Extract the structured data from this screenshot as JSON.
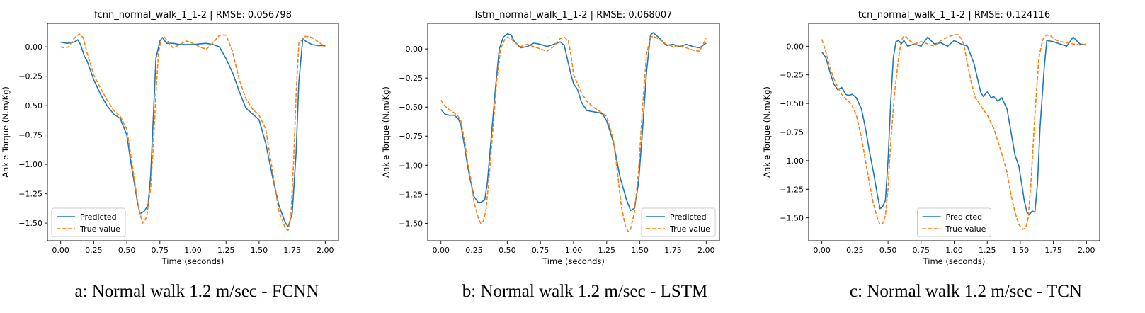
{
  "chart_data": [
    {
      "type": "line",
      "title": "fcnn_normal_walk_1_1-2 | RMSE: 0.056798",
      "xlabel": "Time (seconds)",
      "ylabel": "Ankle Torque (N.m/Kg)",
      "xlim": [
        -0.1,
        2.1
      ],
      "ylim": [
        -1.65,
        0.2
      ],
      "xticks": [
        "0.00",
        "0.25",
        "0.50",
        "0.75",
        "1.00",
        "1.25",
        "1.50",
        "1.75",
        "2.00"
      ],
      "yticks": [
        "0.00",
        "−0.25",
        "−0.50",
        "−0.75",
        "−1.00",
        "−1.25",
        "−1.50"
      ],
      "legend_position": "lower-left",
      "series": [
        {
          "name": "Predicted",
          "color": "#1f77b4",
          "dash": "solid",
          "x": [
            0,
            0.05,
            0.1,
            0.13,
            0.15,
            0.18,
            0.2,
            0.25,
            0.3,
            0.35,
            0.4,
            0.45,
            0.5,
            0.53,
            0.56,
            0.58,
            0.6,
            0.63,
            0.66,
            0.68,
            0.7,
            0.72,
            0.75,
            0.77,
            0.8,
            0.85,
            0.9,
            1.0,
            1.1,
            1.15,
            1.2,
            1.25,
            1.3,
            1.35,
            1.4,
            1.45,
            1.5,
            1.55,
            1.6,
            1.65,
            1.7,
            1.72,
            1.75,
            1.78,
            1.8,
            1.83,
            1.85,
            1.9,
            1.95,
            2.0
          ],
          "y": [
            0.04,
            0.03,
            0.04,
            0.06,
            0.02,
            -0.08,
            -0.12,
            -0.28,
            -0.4,
            -0.5,
            -0.57,
            -0.61,
            -0.75,
            -0.98,
            -1.18,
            -1.32,
            -1.42,
            -1.4,
            -1.35,
            -1.1,
            -0.6,
            -0.1,
            0.05,
            0.08,
            0.03,
            0.03,
            0.02,
            0.02,
            0.03,
            0.02,
            0.0,
            -0.1,
            -0.22,
            -0.38,
            -0.52,
            -0.57,
            -0.62,
            -0.82,
            -1.1,
            -1.35,
            -1.5,
            -1.53,
            -1.42,
            -0.9,
            -0.3,
            0.07,
            0.05,
            0.02,
            0.01,
            0.01
          ]
        },
        {
          "name": "True value",
          "color": "#ff7f0e",
          "dash": "dashed",
          "x": [
            0,
            0.03,
            0.06,
            0.1,
            0.14,
            0.17,
            0.2,
            0.25,
            0.3,
            0.35,
            0.4,
            0.45,
            0.5,
            0.53,
            0.56,
            0.59,
            0.62,
            0.65,
            0.68,
            0.7,
            0.72,
            0.74,
            0.76,
            0.78,
            0.8,
            0.85,
            0.9,
            0.95,
            1.0,
            1.05,
            1.1,
            1.15,
            1.2,
            1.25,
            1.3,
            1.35,
            1.4,
            1.45,
            1.5,
            1.55,
            1.6,
            1.65,
            1.7,
            1.72,
            1.74,
            1.76,
            1.78,
            1.8,
            1.85,
            1.9,
            1.95,
            2.0
          ],
          "y": [
            0.0,
            -0.01,
            0.0,
            0.07,
            0.11,
            0.08,
            -0.05,
            -0.24,
            -0.35,
            -0.45,
            -0.54,
            -0.59,
            -0.7,
            -0.92,
            -1.15,
            -1.38,
            -1.5,
            -1.45,
            -1.2,
            -0.85,
            -0.4,
            -0.05,
            0.07,
            0.09,
            0.06,
            -0.01,
            0.02,
            0.05,
            0.03,
            0.0,
            -0.02,
            0.03,
            0.1,
            0.1,
            -0.04,
            -0.28,
            -0.44,
            -0.53,
            -0.58,
            -0.7,
            -1.05,
            -1.4,
            -1.55,
            -1.56,
            -1.45,
            -1.0,
            -0.4,
            0.03,
            0.09,
            0.08,
            0.04,
            0.0
          ]
        }
      ]
    },
    {
      "type": "line",
      "title": "lstm_normal_walk_1_1-2 | RMSE: 0.068007",
      "xlabel": "Time (seconds)",
      "ylabel": "Ankle Torque (N.m/Kg)",
      "xlim": [
        -0.1,
        2.1
      ],
      "ylim": [
        -1.65,
        0.22
      ],
      "xticks": [
        "0.00",
        "0.25",
        "0.50",
        "0.75",
        "1.00",
        "1.25",
        "1.50",
        "1.75",
        "2.00"
      ],
      "yticks": [
        "0.00",
        "−0.25",
        "−0.50",
        "−0.75",
        "−1.00",
        "−1.25",
        "−1.50"
      ],
      "legend_position": "lower-right",
      "series": [
        {
          "name": "Predicted",
          "color": "#1f77b4",
          "dash": "solid",
          "x": [
            0,
            0.03,
            0.06,
            0.1,
            0.13,
            0.15,
            0.18,
            0.2,
            0.22,
            0.25,
            0.28,
            0.3,
            0.33,
            0.35,
            0.38,
            0.41,
            0.44,
            0.47,
            0.5,
            0.53,
            0.55,
            0.6,
            0.65,
            0.7,
            0.75,
            0.8,
            0.85,
            0.9,
            0.93,
            0.96,
            0.98,
            1.0,
            1.03,
            1.06,
            1.1,
            1.15,
            1.2,
            1.22,
            1.25,
            1.3,
            1.35,
            1.4,
            1.43,
            1.46,
            1.49,
            1.52,
            1.55,
            1.58,
            1.6,
            1.65,
            1.7,
            1.75,
            1.8,
            1.85,
            1.9,
            1.95,
            2.0
          ],
          "y": [
            -0.52,
            -0.56,
            -0.57,
            -0.57,
            -0.6,
            -0.65,
            -0.85,
            -1.0,
            -1.12,
            -1.27,
            -1.32,
            -1.32,
            -1.3,
            -1.15,
            -0.75,
            -0.35,
            0.0,
            0.1,
            0.13,
            0.12,
            0.07,
            0.01,
            0.02,
            0.05,
            0.04,
            0.02,
            0.04,
            0.06,
            0.03,
            -0.12,
            -0.22,
            -0.3,
            -0.35,
            -0.46,
            -0.53,
            -0.54,
            -0.55,
            -0.56,
            -0.62,
            -0.8,
            -1.1,
            -1.3,
            -1.39,
            -1.37,
            -1.15,
            -0.7,
            -0.2,
            0.12,
            0.14,
            0.09,
            0.03,
            0.04,
            0.02,
            0.04,
            0.02,
            0.01,
            0.05
          ]
        },
        {
          "name": "True value",
          "color": "#ff7f0e",
          "dash": "dashed",
          "x": [
            0,
            0.03,
            0.06,
            0.1,
            0.13,
            0.15,
            0.18,
            0.2,
            0.23,
            0.25,
            0.28,
            0.3,
            0.32,
            0.34,
            0.36,
            0.39,
            0.42,
            0.45,
            0.48,
            0.5,
            0.53,
            0.55,
            0.6,
            0.65,
            0.7,
            0.75,
            0.8,
            0.85,
            0.9,
            0.93,
            0.96,
            0.98,
            1.0,
            1.03,
            1.06,
            1.1,
            1.15,
            1.2,
            1.25,
            1.3,
            1.33,
            1.36,
            1.39,
            1.41,
            1.43,
            1.46,
            1.49,
            1.52,
            1.55,
            1.58,
            1.6,
            1.65,
            1.7,
            1.75,
            1.8,
            1.85,
            1.9,
            1.95,
            2.0
          ],
          "y": [
            -0.44,
            -0.49,
            -0.52,
            -0.55,
            -0.58,
            -0.62,
            -0.8,
            -0.97,
            -1.15,
            -1.32,
            -1.45,
            -1.5,
            -1.48,
            -1.38,
            -1.15,
            -0.72,
            -0.28,
            0.0,
            0.08,
            0.1,
            0.09,
            0.06,
            0.02,
            0.04,
            0.02,
            0.0,
            -0.02,
            0.02,
            0.09,
            0.1,
            0.07,
            -0.05,
            -0.22,
            -0.3,
            -0.38,
            -0.45,
            -0.5,
            -0.54,
            -0.58,
            -0.78,
            -1.05,
            -1.35,
            -1.52,
            -1.57,
            -1.55,
            -1.4,
            -1.05,
            -0.5,
            -0.05,
            0.1,
            0.11,
            0.08,
            0.04,
            0.02,
            0.03,
            0.01,
            -0.01,
            -0.02,
            0.09
          ]
        }
      ]
    },
    {
      "type": "line",
      "title": "tcn_normal_walk_1_1-2 | RMSE: 0.124116",
      "xlabel": "Time (seconds)",
      "ylabel": "Ankle Torque (N.m/Kg)",
      "xlim": [
        -0.1,
        2.1
      ],
      "ylim": [
        -1.7,
        0.2
      ],
      "xticks": [
        "0.00",
        "0.25",
        "0.50",
        "0.75",
        "1.00",
        "1.25",
        "1.50",
        "1.75",
        "2.00"
      ],
      "yticks": [
        "0.00",
        "−0.25",
        "−0.50",
        "−0.75",
        "−1.00",
        "−1.25",
        "−1.50"
      ],
      "legend_position": "lower-center",
      "series": [
        {
          "name": "Predicted",
          "color": "#1f77b4",
          "dash": "solid",
          "x": [
            0,
            0.03,
            0.06,
            0.09,
            0.12,
            0.15,
            0.18,
            0.2,
            0.23,
            0.26,
            0.3,
            0.33,
            0.36,
            0.39,
            0.42,
            0.44,
            0.46,
            0.48,
            0.5,
            0.52,
            0.54,
            0.56,
            0.58,
            0.6,
            0.62,
            0.65,
            0.7,
            0.75,
            0.8,
            0.85,
            0.9,
            0.95,
            1.0,
            1.05,
            1.1,
            1.15,
            1.2,
            1.22,
            1.25,
            1.28,
            1.3,
            1.33,
            1.36,
            1.4,
            1.43,
            1.46,
            1.49,
            1.51,
            1.53,
            1.55,
            1.57,
            1.59,
            1.61,
            1.63,
            1.65,
            1.68,
            1.7,
            1.75,
            1.8,
            1.85,
            1.9,
            1.95,
            2.0
          ],
          "y": [
            -0.05,
            -0.1,
            -0.22,
            -0.33,
            -0.38,
            -0.36,
            -0.42,
            -0.43,
            -0.42,
            -0.45,
            -0.55,
            -0.72,
            -0.92,
            -1.1,
            -1.3,
            -1.42,
            -1.4,
            -1.35,
            -1.0,
            -0.5,
            -0.1,
            0.04,
            0.05,
            0.02,
            0.05,
            0.0,
            0.02,
            0.0,
            0.08,
            0.02,
            0.03,
            0.0,
            0.05,
            0.02,
            0.0,
            -0.15,
            -0.4,
            -0.44,
            -0.4,
            -0.45,
            -0.44,
            -0.48,
            -0.45,
            -0.55,
            -0.75,
            -0.95,
            -1.05,
            -1.2,
            -1.35,
            -1.45,
            -1.47,
            -1.44,
            -1.45,
            -1.2,
            -0.7,
            -0.2,
            0.05,
            0.04,
            0.02,
            0.0,
            0.08,
            0.02,
            0.01
          ]
        },
        {
          "name": "True value",
          "color": "#ff7f0e",
          "dash": "dashed",
          "x": [
            0,
            0.03,
            0.06,
            0.09,
            0.12,
            0.15,
            0.18,
            0.22,
            0.26,
            0.3,
            0.33,
            0.36,
            0.39,
            0.42,
            0.44,
            0.46,
            0.48,
            0.5,
            0.52,
            0.55,
            0.58,
            0.6,
            0.62,
            0.64,
            0.66,
            0.7,
            0.75,
            0.8,
            0.85,
            0.9,
            0.95,
            1.0,
            1.03,
            1.06,
            1.08,
            1.1,
            1.13,
            1.16,
            1.2,
            1.25,
            1.3,
            1.35,
            1.4,
            1.43,
            1.46,
            1.49,
            1.52,
            1.54,
            1.56,
            1.58,
            1.61,
            1.64,
            1.67,
            1.7,
            1.73,
            1.76,
            1.8,
            1.85,
            1.9,
            1.95,
            2.0
          ],
          "y": [
            0.06,
            -0.05,
            -0.18,
            -0.28,
            -0.36,
            -0.42,
            -0.46,
            -0.5,
            -0.6,
            -0.8,
            -1.0,
            -1.2,
            -1.38,
            -1.5,
            -1.56,
            -1.55,
            -1.48,
            -1.25,
            -0.85,
            -0.4,
            -0.1,
            0.05,
            0.09,
            0.08,
            0.05,
            0.02,
            0.04,
            0.02,
            0.0,
            0.05,
            0.08,
            0.1,
            0.1,
            0.06,
            -0.02,
            -0.15,
            -0.32,
            -0.45,
            -0.52,
            -0.6,
            -0.72,
            -0.9,
            -1.1,
            -1.3,
            -1.45,
            -1.56,
            -1.6,
            -1.59,
            -1.5,
            -1.2,
            -0.6,
            -0.1,
            0.06,
            0.1,
            0.09,
            0.06,
            0.04,
            0.03,
            0.02,
            0.01,
            0.02
          ]
        }
      ]
    }
  ],
  "captions": [
    "a: Normal walk 1.2 m/sec - FCNN",
    "b: Normal walk 1.2 m/sec - LSTM",
    "c: Normal walk 1.2 m/sec - TCN"
  ]
}
